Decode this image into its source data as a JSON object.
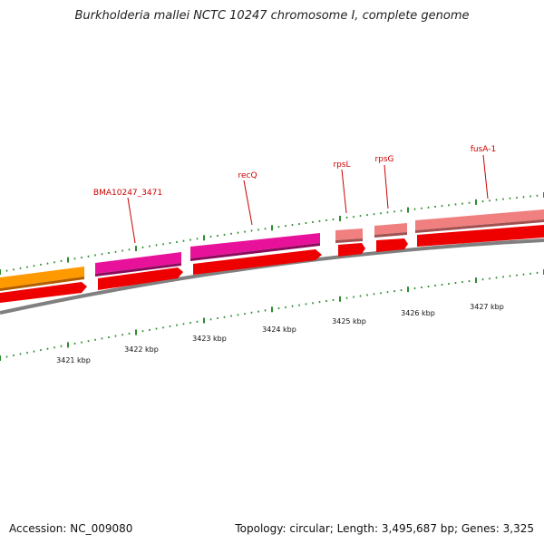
{
  "title": "Burkholderia mallei NCTC 10247 chromosome I, complete genome",
  "footer": {
    "accession": "Accession: NC_009080",
    "stats": "Topology: circular; Length: 3,495,687 bp; Genes: 3,325"
  },
  "colors": {
    "background": "#ffffff",
    "backbone": "#808080",
    "tick": "#2e8b2e",
    "gene_label": "#cc0000",
    "cds_arrow": "#ee0000",
    "feature_orange": "#ff9900",
    "feature_magenta": "#e8119a",
    "feature_pink": "#f08080"
  },
  "features": [
    {
      "color": "orange"
    },
    {
      "color": "magenta",
      "label": "BMA10247_3471"
    },
    {
      "color": "magenta",
      "label": "recQ"
    },
    {
      "color": "pink",
      "label": "rpsL"
    },
    {
      "color": "pink",
      "label": "rpsG"
    },
    {
      "color": "pink",
      "label": "fusA-1"
    }
  ],
  "kbp_labels": [
    "3421 kbp",
    "3422 kbp",
    "3423 kbp",
    "3424 kbp",
    "3425 kbp",
    "3426 kbp",
    "3427 kbp"
  ]
}
